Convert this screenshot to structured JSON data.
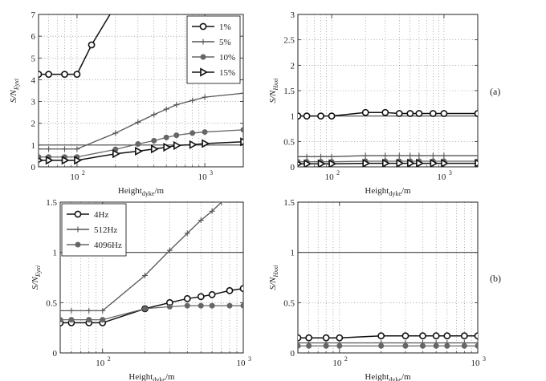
{
  "chart_data": [
    {
      "id": "top-left",
      "type": "line",
      "xscale": "log",
      "xlim": [
        50,
        2000
      ],
      "ylim": [
        0,
        7
      ],
      "yticks": [
        0,
        1,
        2,
        3,
        4,
        5,
        6,
        7
      ],
      "xticks": [
        100,
        1000
      ],
      "xticklabels": [
        "10",
        "10"
      ],
      "xlabel": "Height",
      "xlabel_sub": "dyke",
      "xlabel_unit": "/m",
      "ylabel": "S/N",
      "ylabel_sub": "Eyxi",
      "grid": true,
      "legend": "top-right",
      "hline": 1,
      "series": [
        {
          "name": "1%",
          "color": "#111111",
          "marker": "circle",
          "x": [
            50,
            60,
            80,
            100,
            130,
            190
          ],
          "y": [
            4.25,
            4.25,
            4.25,
            4.25,
            5.6,
            7.2
          ]
        },
        {
          "name": "5%",
          "color": "#555555",
          "marker": "plus",
          "x": [
            50,
            60,
            80,
            100,
            200,
            300,
            400,
            500,
            600,
            800,
            1000,
            2000
          ],
          "y": [
            0.82,
            0.82,
            0.82,
            0.82,
            1.55,
            2.05,
            2.4,
            2.65,
            2.85,
            3.05,
            3.2,
            3.38
          ]
        },
        {
          "name": "10%",
          "color": "#666666",
          "marker": "dot",
          "x": [
            50,
            60,
            80,
            100,
            200,
            300,
            400,
            500,
            600,
            800,
            1000,
            2000
          ],
          "y": [
            0.45,
            0.45,
            0.45,
            0.45,
            0.8,
            1.05,
            1.2,
            1.35,
            1.45,
            1.55,
            1.6,
            1.7
          ]
        },
        {
          "name": "15%",
          "color": "#111111",
          "marker": "triangle",
          "x": [
            50,
            60,
            80,
            100,
            200,
            300,
            400,
            500,
            600,
            800,
            1000,
            2000
          ],
          "y": [
            0.3,
            0.3,
            0.3,
            0.3,
            0.6,
            0.72,
            0.82,
            0.9,
            0.98,
            1.02,
            1.07,
            1.15
          ]
        }
      ]
    },
    {
      "id": "top-right",
      "type": "line",
      "xscale": "log",
      "xlim": [
        50,
        2000
      ],
      "ylim": [
        0,
        3
      ],
      "yticks": [
        0,
        0.5,
        1,
        1.5,
        2,
        2.5,
        3
      ],
      "yticklabels": [
        "0",
        "0.5",
        "1",
        "1.5",
        "2",
        "2.5",
        "3"
      ],
      "xticks": [
        100,
        1000
      ],
      "xticklabels": [
        "10",
        "10"
      ],
      "xlabel": "Height",
      "xlabel_sub": "dyke",
      "xlabel_unit": "/m",
      "ylabel": "S/N",
      "ylabel_sub": "Hxxi",
      "grid": true,
      "hline": 1,
      "panel_label": "(a)",
      "series": [
        {
          "color": "#111111",
          "marker": "circle",
          "x": [
            50,
            60,
            80,
            100,
            200,
            300,
            400,
            500,
            600,
            800,
            1000,
            2000
          ],
          "y": [
            1.0,
            1.0,
            1.0,
            1.0,
            1.07,
            1.07,
            1.05,
            1.05,
            1.05,
            1.05,
            1.05,
            1.05
          ]
        },
        {
          "color": "#555555",
          "marker": "plus",
          "x": [
            50,
            60,
            80,
            100,
            200,
            300,
            400,
            500,
            600,
            800,
            1000,
            2000
          ],
          "y": [
            0.2,
            0.2,
            0.2,
            0.2,
            0.22,
            0.22,
            0.22,
            0.22,
            0.22,
            0.22,
            0.22,
            0.22
          ]
        },
        {
          "color": "#666666",
          "marker": "dot",
          "x": [
            50,
            60,
            80,
            100,
            200,
            300,
            400,
            500,
            600,
            800,
            1000,
            2000
          ],
          "y": [
            0.1,
            0.1,
            0.1,
            0.1,
            0.11,
            0.11,
            0.11,
            0.11,
            0.11,
            0.11,
            0.11,
            0.11
          ]
        },
        {
          "color": "#111111",
          "marker": "triangle",
          "x": [
            50,
            60,
            80,
            100,
            200,
            300,
            400,
            500,
            600,
            800,
            1000,
            2000
          ],
          "y": [
            0.06,
            0.06,
            0.06,
            0.06,
            0.07,
            0.07,
            0.07,
            0.07,
            0.07,
            0.07,
            0.07,
            0.07
          ]
        }
      ]
    },
    {
      "id": "bottom-left",
      "type": "line",
      "xscale": "log",
      "xlim": [
        50,
        1000
      ],
      "ylim": [
        0,
        1.5
      ],
      "yticks": [
        0,
        0.5,
        1,
        1.5
      ],
      "yticklabels": [
        "0",
        "0.5",
        "1",
        "1.5"
      ],
      "xticks": [
        100,
        1000
      ],
      "xticklabels": [
        "10",
        "10"
      ],
      "xlabel": "Height",
      "xlabel_sub": "dyke",
      "xlabel_unit": "/m",
      "ylabel": "S/N",
      "ylabel_sub": "Eyxi",
      "grid": true,
      "legend": "top-left",
      "hline": 1,
      "series": [
        {
          "name": "4Hz",
          "color": "#111111",
          "marker": "circle",
          "x": [
            50,
            60,
            80,
            100,
            200,
            300,
            400,
            500,
            600,
            800,
            1000
          ],
          "y": [
            0.3,
            0.3,
            0.3,
            0.3,
            0.44,
            0.5,
            0.54,
            0.56,
            0.58,
            0.62,
            0.64
          ]
        },
        {
          "name": "512Hz",
          "color": "#555555",
          "marker": "plus",
          "x": [
            50,
            60,
            80,
            100,
            200,
            300,
            400,
            500,
            600,
            700
          ],
          "y": [
            0.42,
            0.42,
            0.42,
            0.42,
            0.77,
            1.02,
            1.19,
            1.32,
            1.41,
            1.5
          ]
        },
        {
          "name": "4096Hz",
          "color": "#666666",
          "marker": "dot",
          "x": [
            50,
            60,
            80,
            100,
            200,
            300,
            400,
            500,
            600,
            800,
            1000
          ],
          "y": [
            0.33,
            0.33,
            0.33,
            0.33,
            0.44,
            0.46,
            0.47,
            0.47,
            0.47,
            0.47,
            0.47
          ]
        }
      ]
    },
    {
      "id": "bottom-right",
      "type": "line",
      "xscale": "log",
      "xlim": [
        50,
        1000
      ],
      "ylim": [
        0,
        1.5
      ],
      "yticks": [
        0,
        0.5,
        1,
        1.5
      ],
      "yticklabels": [
        "0",
        "0.5",
        "1",
        "1.5"
      ],
      "xticks": [
        100,
        1000
      ],
      "xticklabels": [
        "10",
        "10"
      ],
      "xlabel": "Height",
      "xlabel_sub": "dyke",
      "xlabel_unit": "/m",
      "ylabel": "S/N",
      "ylabel_sub": "Hxxi",
      "grid": true,
      "hline": 1,
      "panel_label": "(b)",
      "series": [
        {
          "color": "#111111",
          "marker": "circle",
          "x": [
            50,
            60,
            80,
            100,
            200,
            300,
            400,
            500,
            600,
            800,
            1000
          ],
          "y": [
            0.15,
            0.15,
            0.15,
            0.15,
            0.17,
            0.17,
            0.17,
            0.17,
            0.17,
            0.17,
            0.17
          ]
        },
        {
          "color": "#555555",
          "marker": "plus",
          "x": [
            50,
            60,
            80,
            100,
            200,
            300,
            400,
            500,
            600,
            800,
            1000
          ],
          "y": [
            0.1,
            0.1,
            0.1,
            0.1,
            0.1,
            0.1,
            0.1,
            0.1,
            0.1,
            0.1,
            0.1
          ]
        },
        {
          "color": "#666666",
          "marker": "dot",
          "x": [
            50,
            60,
            80,
            100,
            200,
            300,
            400,
            500,
            600,
            800,
            1000
          ],
          "y": [
            0.07,
            0.07,
            0.07,
            0.07,
            0.07,
            0.07,
            0.07,
            0.07,
            0.07,
            0.07,
            0.07
          ]
        }
      ]
    }
  ]
}
